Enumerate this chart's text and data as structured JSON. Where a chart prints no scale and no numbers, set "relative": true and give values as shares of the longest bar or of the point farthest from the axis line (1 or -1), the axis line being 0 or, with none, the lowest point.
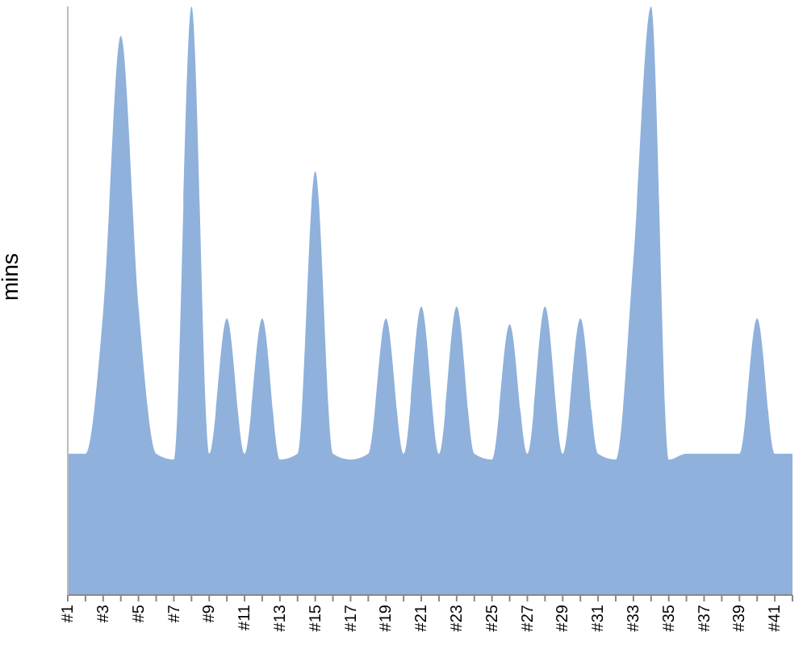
{
  "chart_data": {
    "type": "area",
    "ylabel": "mins",
    "relative": true,
    "color": "#8fb1db",
    "categories": [
      "#1",
      null,
      "#3",
      null,
      "#5",
      null,
      "#7",
      null,
      "#9",
      null,
      "#11",
      null,
      "#13",
      null,
      "#15",
      null,
      "#17",
      null,
      "#19",
      null,
      "#21",
      null,
      "#23",
      null,
      "#25",
      null,
      "#27",
      null,
      "#29",
      null,
      "#31",
      null,
      "#33",
      null,
      "#35",
      null,
      "#37",
      null,
      "#39",
      null,
      "#41",
      null
    ],
    "values": [
      0.24,
      0.24,
      0.48,
      0.95,
      0.49,
      0.24,
      0.23,
      1,
      0.24,
      0.47,
      0.24,
      0.47,
      0.23,
      0.24,
      0.72,
      0.24,
      0.23,
      0.24,
      0.47,
      0.24,
      0.49,
      0.24,
      0.49,
      0.24,
      0.23,
      0.46,
      0.24,
      0.49,
      0.24,
      0.47,
      0.24,
      0.23,
      0.57,
      1,
      0.23,
      0.24,
      0.24,
      0.24,
      0.24,
      0.47,
      0.24,
      0.24
    ],
    "grid": false,
    "legend": false
  }
}
